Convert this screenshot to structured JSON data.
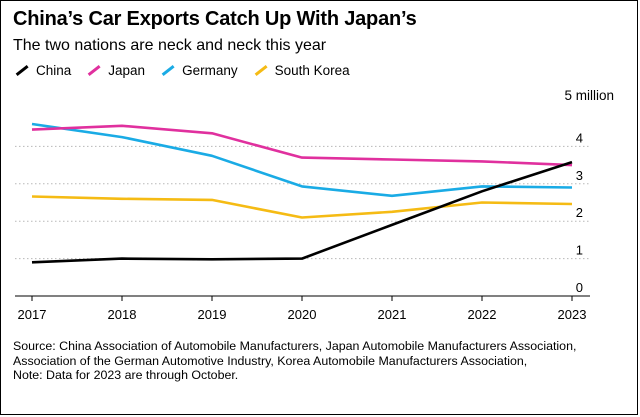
{
  "title": "China’s Car Exports Catch Up With Japan’s",
  "subtitle": "The two nations are neck and neck this year",
  "unit_label": "5 million",
  "source_text": "Source: China Association of Automobile Manufacturers, Japan Automobile Manufacturers Association, Association of the German Automotive Industry, Korea Automobile Manufacturers Association,",
  "note_text": "Note: Data for 2023 are through October.",
  "chart_data": {
    "type": "line",
    "title": "China’s Car Exports Catch Up With Japan’s",
    "subtitle": "The two nations are neck and neck this year",
    "x": [
      "2017",
      "2018",
      "2019",
      "2020",
      "2021",
      "2022",
      "2023"
    ],
    "ylim": [
      0,
      5
    ],
    "yticks": [
      "0",
      "1",
      "2",
      "3",
      "4"
    ],
    "yunit_label": "5 million",
    "grid": true,
    "legend_position": "top-left",
    "series": [
      {
        "name": "China",
        "color": "#000000",
        "values": [
          0.9,
          1.0,
          0.98,
          1.0,
          1.9,
          2.8,
          3.58
        ]
      },
      {
        "name": "Japan",
        "color": "#e0309e",
        "values": [
          4.45,
          4.55,
          4.35,
          3.7,
          3.65,
          3.6,
          3.5
        ]
      },
      {
        "name": "Germany",
        "color": "#1aabe5",
        "values": [
          4.6,
          4.25,
          3.75,
          2.93,
          2.68,
          2.93,
          2.9
        ]
      },
      {
        "name": "South Korea",
        "color": "#f5bb14",
        "values": [
          2.66,
          2.6,
          2.57,
          2.1,
          2.25,
          2.5,
          2.46
        ]
      }
    ]
  }
}
